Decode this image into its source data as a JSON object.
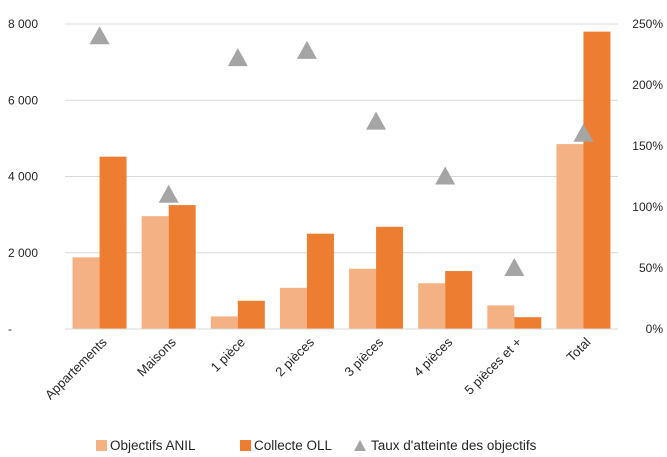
{
  "chart_data": {
    "type": "bar",
    "categories": [
      "Appartements",
      "Maisons",
      "1 pièce",
      "2 pièces",
      "3 pièces",
      "4 pièces",
      "5 pièces et +",
      "Total"
    ],
    "series": [
      {
        "name": "Objectifs ANIL",
        "kind": "bar",
        "axis": "left",
        "color": "#f4b183",
        "values": [
          1880,
          2960,
          330,
          1080,
          1580,
          1200,
          620,
          4850
        ]
      },
      {
        "name": "Collecte OLL",
        "kind": "bar",
        "axis": "left",
        "color": "#ed7d31",
        "values": [
          4520,
          3250,
          740,
          2500,
          2680,
          1520,
          310,
          7800
        ]
      },
      {
        "name": "Taux d'atteinte des objectifs",
        "kind": "scatter",
        "marker": "triangle",
        "axis": "right",
        "color": "#a5a5a5",
        "values": [
          240,
          110,
          222,
          228,
          170,
          125,
          50,
          160
        ]
      }
    ],
    "y_left": {
      "range": [
        0,
        8000
      ],
      "ticks": [
        0,
        2000,
        4000,
        6000,
        8000
      ],
      "tick_labels": [
        "-",
        "2 000",
        "4 000",
        "6 000",
        "8 000"
      ]
    },
    "y_right": {
      "unit": "%",
      "range": [
        0,
        250
      ],
      "ticks": [
        0,
        50,
        100,
        150,
        200,
        250
      ],
      "tick_labels": [
        "0%",
        "50%",
        "100%",
        "150%",
        "200%",
        "250%"
      ]
    },
    "grid": true,
    "legend_position": "bottom"
  }
}
